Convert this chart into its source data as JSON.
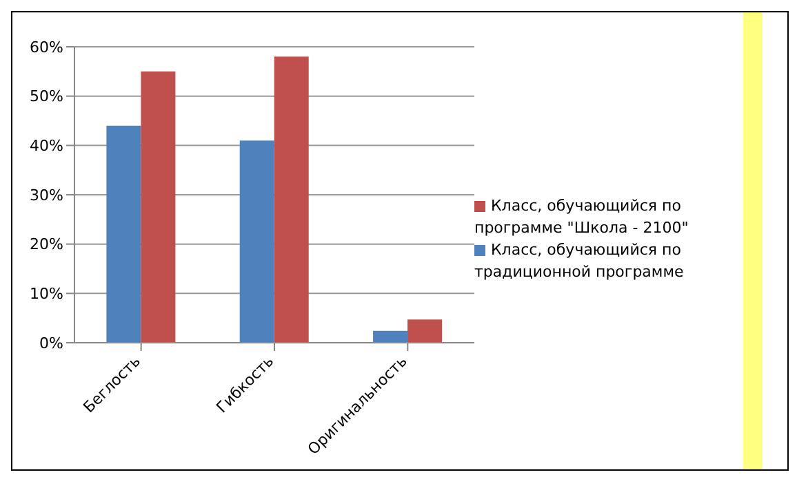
{
  "chart_data": {
    "type": "bar",
    "categories": [
      "Беглость",
      "Гибкость",
      "Оригинальность"
    ],
    "series": [
      {
        "name": "Класс, обучающийся по традиционной программе",
        "color": "#4f81bd",
        "values": [
          44,
          41,
          2.4
        ]
      },
      {
        "name": "Класс, обучающийся по программе \"Школа - 2100\"",
        "color": "#c0504d",
        "values": [
          55,
          58,
          4.7
        ]
      }
    ],
    "ylim": [
      0,
      60
    ],
    "yticks": [
      {
        "value": 0,
        "label": "0%"
      },
      {
        "value": 10,
        "label": "10%"
      },
      {
        "value": 20,
        "label": "20%"
      },
      {
        "value": 30,
        "label": "30%"
      },
      {
        "value": 40,
        "label": "40%"
      },
      {
        "value": 50,
        "label": "50%"
      },
      {
        "value": 60,
        "label": "60%"
      }
    ],
    "grid": "y",
    "legend": "right"
  }
}
